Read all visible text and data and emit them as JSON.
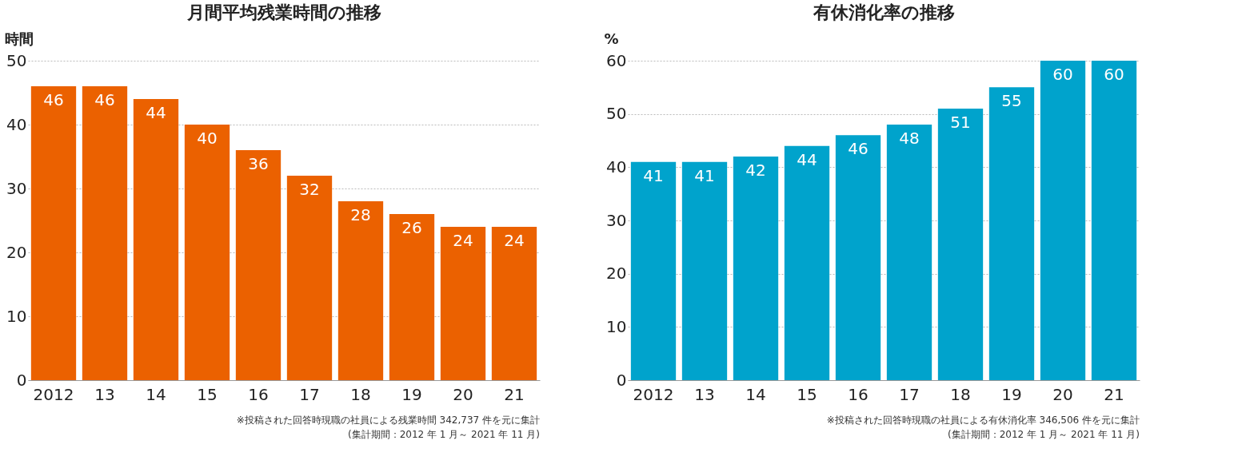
{
  "chart_data": [
    {
      "type": "bar",
      "title": "月間平均残業時間の推移",
      "ylabel": "時間",
      "categories": [
        "2012",
        "13",
        "14",
        "15",
        "16",
        "17",
        "18",
        "19",
        "20",
        "21"
      ],
      "values": [
        46,
        46,
        44,
        40,
        36,
        32,
        28,
        26,
        24,
        24
      ],
      "color": "#eb6100",
      "ylim": [
        0,
        50
      ],
      "yticks": [
        0,
        10,
        20,
        30,
        40,
        50
      ],
      "grid": "y",
      "data_labels": true,
      "annotations": [
        "※投稿された回答時現職の社員による残業時間 342,737 件を元に集計",
        "(集計期間：2012 年 1 月～ 2021 年 11 月)"
      ]
    },
    {
      "type": "bar",
      "title": "有休消化率の推移",
      "ylabel": "%",
      "categories": [
        "2012",
        "13",
        "14",
        "15",
        "16",
        "17",
        "18",
        "19",
        "20",
        "21"
      ],
      "values": [
        41,
        41,
        42,
        44,
        46,
        48,
        51,
        55,
        60,
        60
      ],
      "color": "#00a3cc",
      "ylim": [
        0,
        60
      ],
      "yticks": [
        0,
        10,
        20,
        30,
        40,
        50,
        60
      ],
      "grid": "y",
      "data_labels": true,
      "annotations": [
        "※投稿された回答時現職の社員による有休消化率 346,506 件を元に集計",
        "(集計期間：2012 年 1 月～ 2021 年 11 月)"
      ]
    }
  ]
}
